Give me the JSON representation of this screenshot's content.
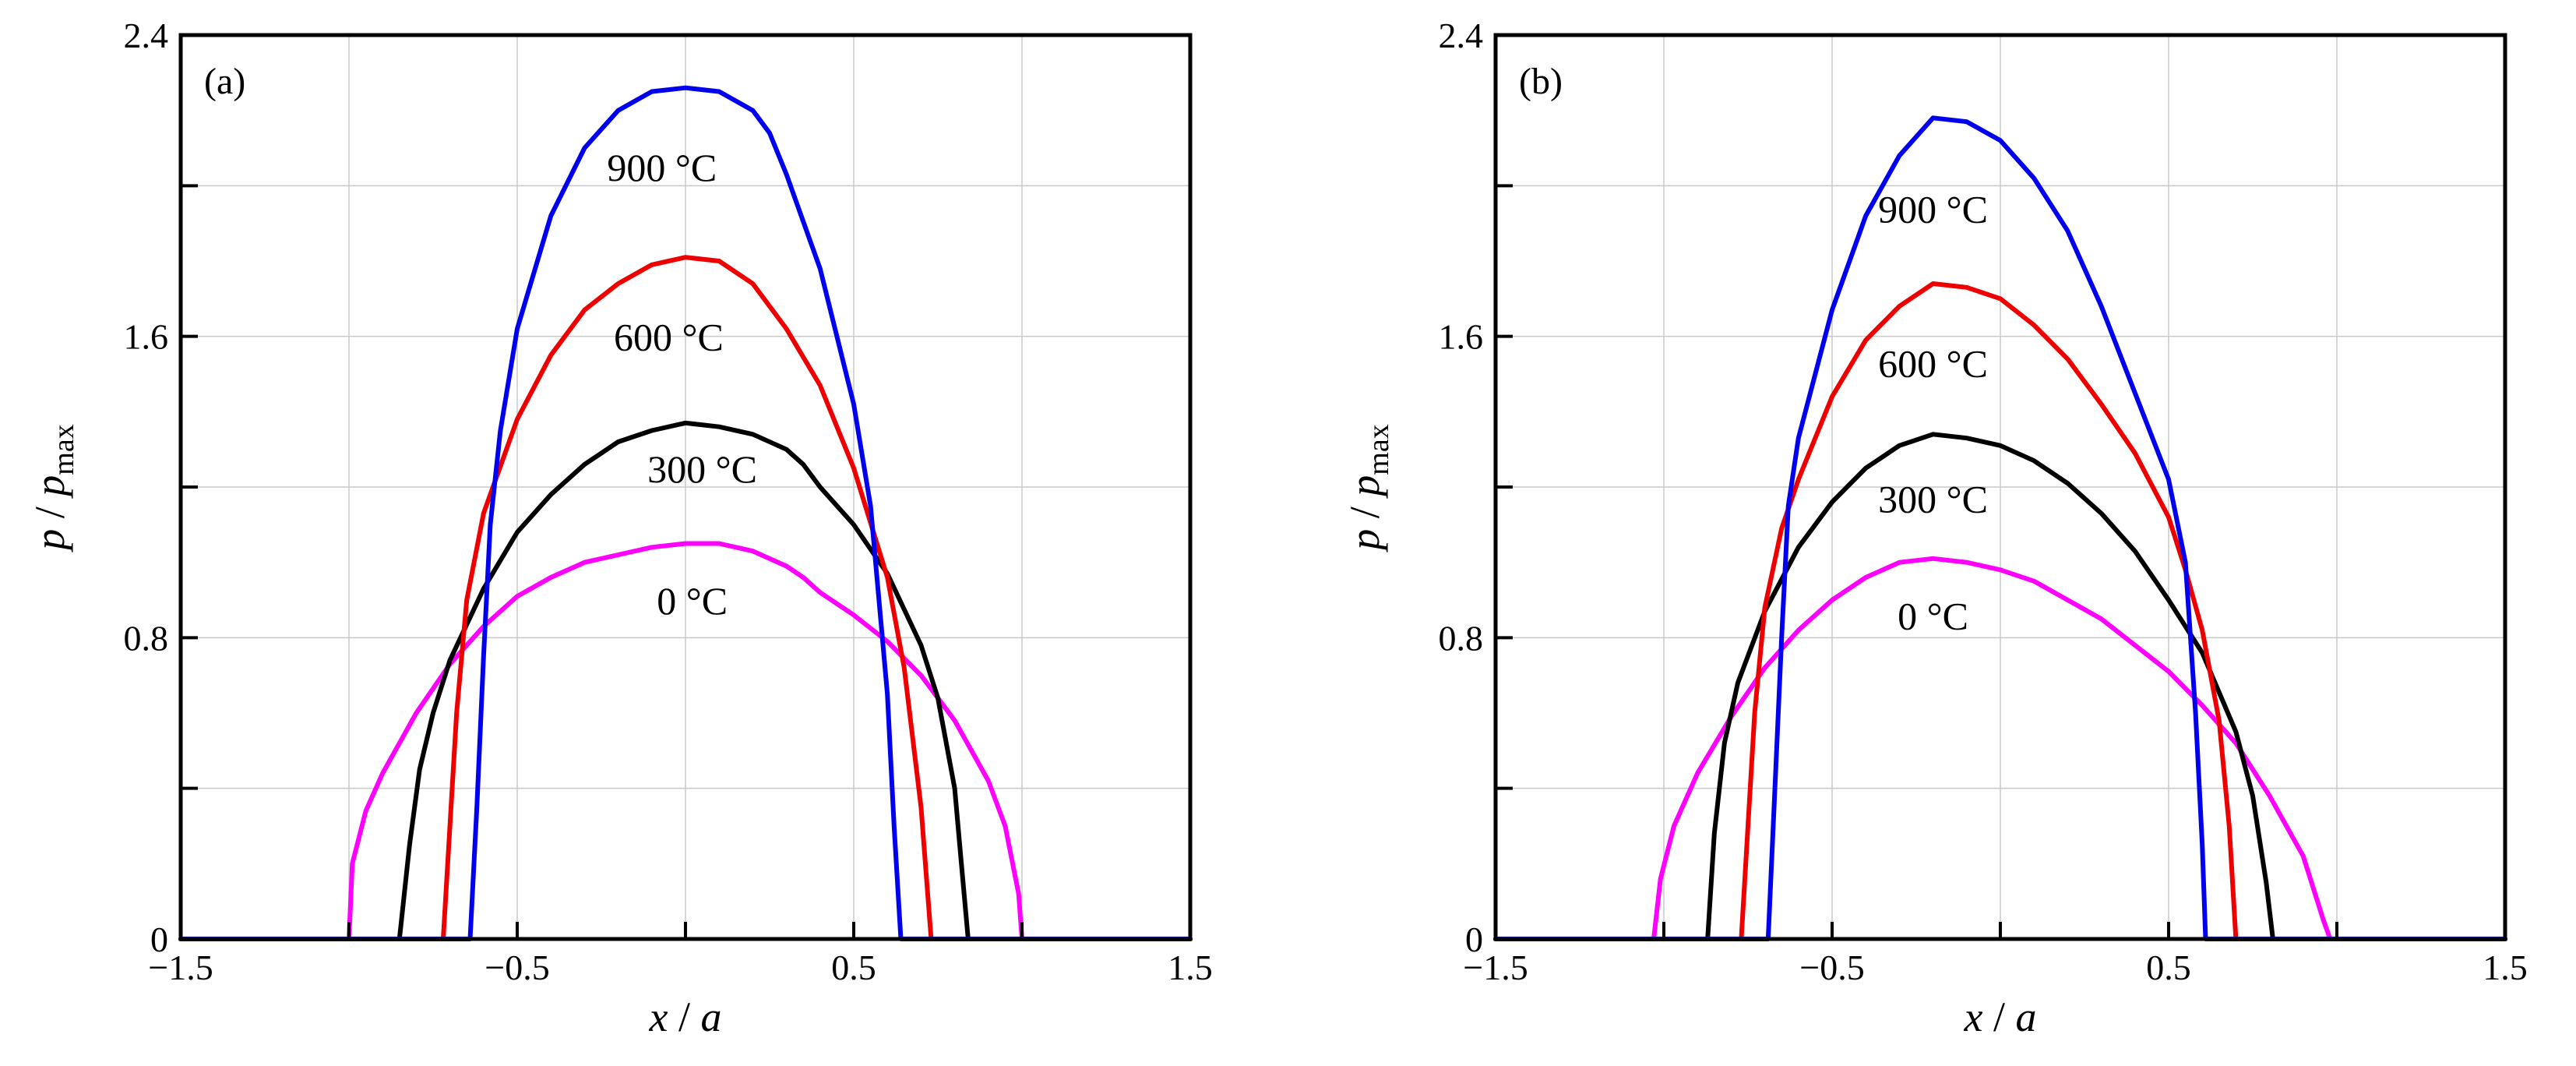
{
  "chart_data": [
    {
      "type": "line",
      "panel_label": "(a)",
      "xlabel": {
        "main": "x",
        "sep": " / ",
        "denom": "a"
      },
      "ylabel": {
        "main": "p",
        "sep": " / ",
        "denom": "p",
        "sub": "max"
      },
      "xlim": [
        -1.5,
        1.5
      ],
      "ylim": [
        0,
        2.4
      ],
      "x_ticks": [
        -1.5,
        -0.5,
        0.5,
        1.5
      ],
      "x_tick_labels": [
        "−1.5",
        "−0.5",
        "0.5",
        "1.5"
      ],
      "x_minor_ticks": [
        -1.0,
        0.0,
        1.0
      ],
      "y_ticks": [
        0,
        0.8,
        1.6,
        2.4
      ],
      "y_tick_labels": [
        "0",
        "0.8",
        "1.6",
        "2.4"
      ],
      "y_minor_ticks": [
        0.4,
        1.2,
        2.0
      ],
      "grid": true,
      "series": [
        {
          "label": "0 °C",
          "color": "#ff00ff",
          "label_at": [
            0.02,
            0.9
          ],
          "points": [
            [
              -1.5,
              0
            ],
            [
              -1.0,
              0
            ],
            [
              -0.99,
              0.2
            ],
            [
              -0.95,
              0.34
            ],
            [
              -0.9,
              0.44
            ],
            [
              -0.8,
              0.6
            ],
            [
              -0.7,
              0.73
            ],
            [
              -0.6,
              0.83
            ],
            [
              -0.5,
              0.91
            ],
            [
              -0.4,
              0.96
            ],
            [
              -0.3,
              1.0
            ],
            [
              -0.2,
              1.02
            ],
            [
              -0.1,
              1.04
            ],
            [
              0.0,
              1.05
            ],
            [
              0.1,
              1.05
            ],
            [
              0.2,
              1.03
            ],
            [
              0.3,
              0.99
            ],
            [
              0.35,
              0.96
            ],
            [
              0.4,
              0.92
            ],
            [
              0.5,
              0.86
            ],
            [
              0.6,
              0.79
            ],
            [
              0.7,
              0.7
            ],
            [
              0.8,
              0.58
            ],
            [
              0.9,
              0.42
            ],
            [
              0.95,
              0.3
            ],
            [
              0.99,
              0.12
            ],
            [
              1.0,
              0
            ],
            [
              1.5,
              0
            ]
          ]
        },
        {
          "label": "300 °C",
          "color": "#000000",
          "label_at": [
            0.05,
            1.25
          ],
          "points": [
            [
              -1.5,
              0
            ],
            [
              -0.85,
              0
            ],
            [
              -0.82,
              0.25
            ],
            [
              -0.79,
              0.45
            ],
            [
              -0.75,
              0.6
            ],
            [
              -0.7,
              0.74
            ],
            [
              -0.6,
              0.93
            ],
            [
              -0.5,
              1.08
            ],
            [
              -0.4,
              1.18
            ],
            [
              -0.3,
              1.26
            ],
            [
              -0.2,
              1.32
            ],
            [
              -0.1,
              1.35
            ],
            [
              0.0,
              1.37
            ],
            [
              0.1,
              1.36
            ],
            [
              0.2,
              1.34
            ],
            [
              0.3,
              1.3
            ],
            [
              0.35,
              1.26
            ],
            [
              0.4,
              1.2
            ],
            [
              0.5,
              1.1
            ],
            [
              0.6,
              0.97
            ],
            [
              0.7,
              0.78
            ],
            [
              0.75,
              0.64
            ],
            [
              0.8,
              0.4
            ],
            [
              0.82,
              0.2
            ],
            [
              0.84,
              0
            ],
            [
              1.5,
              0
            ]
          ]
        },
        {
          "label": "600 °C",
          "color": "#ee0000",
          "label_at": [
            -0.05,
            1.6
          ],
          "points": [
            [
              -1.5,
              0
            ],
            [
              -0.72,
              0
            ],
            [
              -0.7,
              0.3
            ],
            [
              -0.68,
              0.6
            ],
            [
              -0.65,
              0.9
            ],
            [
              -0.6,
              1.13
            ],
            [
              -0.5,
              1.38
            ],
            [
              -0.4,
              1.55
            ],
            [
              -0.3,
              1.67
            ],
            [
              -0.2,
              1.74
            ],
            [
              -0.1,
              1.79
            ],
            [
              0.0,
              1.81
            ],
            [
              0.1,
              1.8
            ],
            [
              0.2,
              1.74
            ],
            [
              0.3,
              1.62
            ],
            [
              0.4,
              1.47
            ],
            [
              0.5,
              1.25
            ],
            [
              0.6,
              0.96
            ],
            [
              0.65,
              0.72
            ],
            [
              0.7,
              0.35
            ],
            [
              0.73,
              0
            ],
            [
              1.5,
              0
            ]
          ]
        },
        {
          "label": "900 °C",
          "color": "#0000ee",
          "label_at": [
            -0.07,
            2.05
          ],
          "points": [
            [
              -1.5,
              0
            ],
            [
              -0.64,
              0
            ],
            [
              -0.62,
              0.35
            ],
            [
              -0.6,
              0.75
            ],
            [
              -0.58,
              1.1
            ],
            [
              -0.55,
              1.35
            ],
            [
              -0.5,
              1.62
            ],
            [
              -0.4,
              1.92
            ],
            [
              -0.3,
              2.1
            ],
            [
              -0.2,
              2.2
            ],
            [
              -0.1,
              2.25
            ],
            [
              0.0,
              2.26
            ],
            [
              0.1,
              2.25
            ],
            [
              0.2,
              2.2
            ],
            [
              0.25,
              2.14
            ],
            [
              0.3,
              2.03
            ],
            [
              0.4,
              1.78
            ],
            [
              0.5,
              1.42
            ],
            [
              0.55,
              1.15
            ],
            [
              0.6,
              0.65
            ],
            [
              0.62,
              0.3
            ],
            [
              0.64,
              0
            ],
            [
              1.5,
              0
            ]
          ]
        }
      ]
    },
    {
      "type": "line",
      "panel_label": "(b)",
      "xlabel": {
        "main": "x",
        "sep": " / ",
        "denom": "a"
      },
      "ylabel": {
        "main": "p",
        "sep": " / ",
        "denom": "p",
        "sub": "max"
      },
      "xlim": [
        -1.5,
        1.5
      ],
      "ylim": [
        0,
        2.4
      ],
      "x_ticks": [
        -1.5,
        -0.5,
        0.5,
        1.5
      ],
      "x_tick_labels": [
        "−1.5",
        "−0.5",
        "0.5",
        "1.5"
      ],
      "x_minor_ticks": [
        -1.0,
        0.0,
        1.0
      ],
      "y_ticks": [
        0,
        0.8,
        1.6,
        2.4
      ],
      "y_tick_labels": [
        "0",
        "0.8",
        "1.6",
        "2.4"
      ],
      "y_minor_ticks": [
        0.4,
        1.2,
        2.0
      ],
      "grid": true,
      "series": [
        {
          "label": "0 °C",
          "color": "#ff00ff",
          "label_at": [
            -0.2,
            0.86
          ],
          "points": [
            [
              -1.5,
              0
            ],
            [
              -1.03,
              0
            ],
            [
              -1.01,
              0.16
            ],
            [
              -0.97,
              0.3
            ],
            [
              -0.9,
              0.44
            ],
            [
              -0.8,
              0.59
            ],
            [
              -0.7,
              0.72
            ],
            [
              -0.6,
              0.82
            ],
            [
              -0.5,
              0.9
            ],
            [
              -0.4,
              0.96
            ],
            [
              -0.3,
              1.0
            ],
            [
              -0.2,
              1.01
            ],
            [
              -0.1,
              1.0
            ],
            [
              0.0,
              0.98
            ],
            [
              0.1,
              0.95
            ],
            [
              0.2,
              0.9
            ],
            [
              0.3,
              0.85
            ],
            [
              0.4,
              0.78
            ],
            [
              0.5,
              0.71
            ],
            [
              0.6,
              0.62
            ],
            [
              0.7,
              0.52
            ],
            [
              0.8,
              0.38
            ],
            [
              0.9,
              0.22
            ],
            [
              0.96,
              0.05
            ],
            [
              0.98,
              0
            ],
            [
              1.5,
              0
            ]
          ]
        },
        {
          "label": "300 °C",
          "color": "#000000",
          "label_at": [
            -0.2,
            1.17
          ],
          "points": [
            [
              -1.5,
              0
            ],
            [
              -0.87,
              0
            ],
            [
              -0.85,
              0.28
            ],
            [
              -0.82,
              0.52
            ],
            [
              -0.78,
              0.68
            ],
            [
              -0.7,
              0.87
            ],
            [
              -0.6,
              1.04
            ],
            [
              -0.5,
              1.16
            ],
            [
              -0.4,
              1.25
            ],
            [
              -0.3,
              1.31
            ],
            [
              -0.2,
              1.34
            ],
            [
              -0.1,
              1.33
            ],
            [
              0.0,
              1.31
            ],
            [
              0.1,
              1.27
            ],
            [
              0.2,
              1.21
            ],
            [
              0.3,
              1.13
            ],
            [
              0.4,
              1.03
            ],
            [
              0.5,
              0.9
            ],
            [
              0.6,
              0.76
            ],
            [
              0.7,
              0.55
            ],
            [
              0.75,
              0.38
            ],
            [
              0.79,
              0.15
            ],
            [
              0.81,
              0
            ],
            [
              1.5,
              0
            ]
          ]
        },
        {
          "label": "600 °C",
          "color": "#ee0000",
          "label_at": [
            -0.2,
            1.53
          ],
          "points": [
            [
              -1.5,
              0
            ],
            [
              -0.77,
              0
            ],
            [
              -0.75,
              0.3
            ],
            [
              -0.73,
              0.6
            ],
            [
              -0.7,
              0.88
            ],
            [
              -0.65,
              1.09
            ],
            [
              -0.6,
              1.22
            ],
            [
              -0.5,
              1.44
            ],
            [
              -0.4,
              1.59
            ],
            [
              -0.3,
              1.68
            ],
            [
              -0.2,
              1.74
            ],
            [
              -0.1,
              1.73
            ],
            [
              0.0,
              1.7
            ],
            [
              0.1,
              1.63
            ],
            [
              0.2,
              1.54
            ],
            [
              0.3,
              1.42
            ],
            [
              0.4,
              1.29
            ],
            [
              0.5,
              1.12
            ],
            [
              0.55,
              0.98
            ],
            [
              0.6,
              0.82
            ],
            [
              0.65,
              0.58
            ],
            [
              0.68,
              0.3
            ],
            [
              0.7,
              0
            ],
            [
              1.5,
              0
            ]
          ]
        },
        {
          "label": "900 °C",
          "color": "#0000ee",
          "label_at": [
            -0.2,
            1.94
          ],
          "points": [
            [
              -1.5,
              0
            ],
            [
              -0.69,
              0
            ],
            [
              -0.67,
              0.4
            ],
            [
              -0.65,
              0.8
            ],
            [
              -0.63,
              1.15
            ],
            [
              -0.6,
              1.33
            ],
            [
              -0.55,
              1.5
            ],
            [
              -0.5,
              1.67
            ],
            [
              -0.4,
              1.92
            ],
            [
              -0.3,
              2.08
            ],
            [
              -0.2,
              2.18
            ],
            [
              -0.1,
              2.17
            ],
            [
              0.0,
              2.12
            ],
            [
              0.1,
              2.02
            ],
            [
              0.2,
              1.88
            ],
            [
              0.3,
              1.68
            ],
            [
              0.4,
              1.45
            ],
            [
              0.5,
              1.22
            ],
            [
              0.55,
              1.0
            ],
            [
              0.58,
              0.6
            ],
            [
              0.6,
              0.25
            ],
            [
              0.61,
              0
            ],
            [
              1.5,
              0
            ]
          ]
        }
      ]
    }
  ]
}
